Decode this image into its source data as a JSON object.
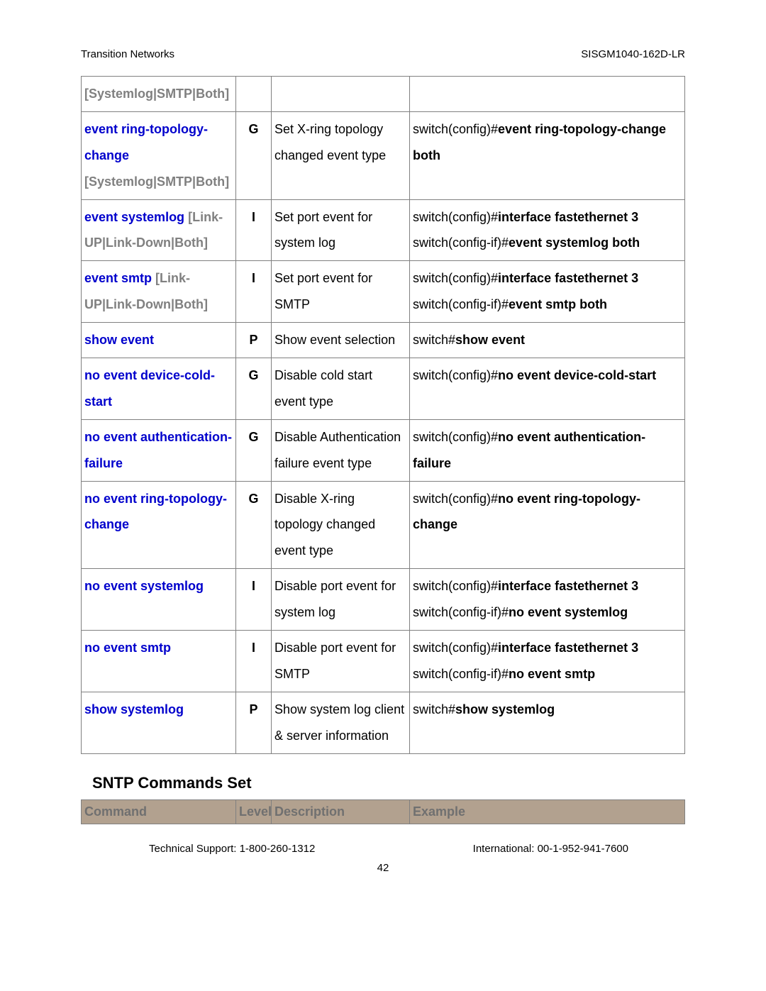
{
  "header": {
    "left": "Transition Networks",
    "right": "SISGM1040-162D-LR"
  },
  "table1": {
    "rows": [
      {
        "cmd": "",
        "opt": "[Systemlog|SMTP|Both]",
        "lvl": "",
        "desc": "",
        "ex_parts": []
      },
      {
        "cmd": "event ring-topology-change",
        "opt": "[Systemlog|SMTP|Both]",
        "lvl": "G",
        "desc": "Set X-ring topology changed event type",
        "ex_parts": [
          {
            "t": "switch(config)#",
            "b": false
          },
          {
            "t": "event ring-topology-change both",
            "b": true
          }
        ]
      },
      {
        "cmd": "event systemlog",
        "opt": "[Link-UP|Link-Down|Both]",
        "lvl": "I",
        "desc": "Set port event for system log",
        "ex_parts": [
          {
            "t": "switch(config)#",
            "b": false
          },
          {
            "t": "interface fastethernet 3",
            "b": true
          },
          {
            "t": "\n",
            "b": false
          },
          {
            "t": "switch(config-if)#",
            "b": false
          },
          {
            "t": "event systemlog both",
            "b": true
          }
        ]
      },
      {
        "cmd": "event smtp",
        "opt": "[Link-UP|Link-Down|Both]",
        "lvl": "I",
        "desc": "Set port event for SMTP",
        "ex_parts": [
          {
            "t": "switch(config)#",
            "b": false
          },
          {
            "t": "interface fastethernet 3",
            "b": true
          },
          {
            "t": "\n",
            "b": false
          },
          {
            "t": "switch(config-if)#",
            "b": false
          },
          {
            "t": "event smtp both",
            "b": true
          }
        ]
      },
      {
        "cmd": "show event",
        "opt": "",
        "lvl": "P",
        "desc": "Show event selection",
        "ex_parts": [
          {
            "t": "switch#",
            "b": false
          },
          {
            "t": "show event",
            "b": true
          }
        ]
      },
      {
        "cmd": "no event device-cold-start",
        "opt": "",
        "lvl": "G",
        "desc": "Disable cold start event type",
        "ex_parts": [
          {
            "t": "switch(config)#",
            "b": false
          },
          {
            "t": "no event device-cold-start",
            "b": true
          }
        ]
      },
      {
        "cmd": "no event authentication-failure",
        "opt": "",
        "lvl": "G",
        "desc": "Disable Authentication failure event type",
        "ex_parts": [
          {
            "t": "switch(config)#",
            "b": false
          },
          {
            "t": "no event authentication-failure",
            "b": true
          }
        ]
      },
      {
        "cmd": "no event ring-topology-change",
        "opt": "",
        "lvl": "G",
        "desc": "Disable X-ring topology changed event type",
        "ex_parts": [
          {
            "t": "switch(config)#",
            "b": false
          },
          {
            "t": "no event ring-topology-change",
            "b": true
          }
        ]
      },
      {
        "cmd": "no event systemlog",
        "opt": "",
        "lvl": "I",
        "desc": "Disable port event for system log",
        "ex_parts": [
          {
            "t": "switch(config)#",
            "b": false
          },
          {
            "t": "interface fastethernet 3",
            "b": true
          },
          {
            "t": "\n",
            "b": false
          },
          {
            "t": "switch(config-if)#",
            "b": false
          },
          {
            "t": "no event systemlog",
            "b": true
          }
        ]
      },
      {
        "cmd": "no event smtp",
        "opt": "",
        "lvl": "I",
        "desc": "Disable port event for SMTP",
        "ex_parts": [
          {
            "t": "switch(config)#",
            "b": false
          },
          {
            "t": "interface fastethernet 3",
            "b": true
          },
          {
            "t": "\n",
            "b": false
          },
          {
            "t": "switch(config-if)#",
            "b": false
          },
          {
            "t": "no event smtp",
            "b": true
          }
        ]
      },
      {
        "cmd": "show systemlog",
        "opt": "",
        "lvl": "P",
        "desc": "Show system log client & server information",
        "ex_parts": [
          {
            "t": "switch#",
            "b": false
          },
          {
            "t": "show systemlog",
            "b": true
          }
        ]
      }
    ]
  },
  "section_title": "SNTP Commands Set",
  "table2_headers": {
    "command": "Command",
    "level": "Level",
    "description": "Description",
    "example": "Example"
  },
  "footer": {
    "left": "Technical Support: 1-800-260-1312",
    "right": "International: 00-1-952-941-7600",
    "page": "42"
  },
  "colors": {
    "cmd_blue": "#0000cc",
    "opt_gray": "#808080",
    "header_bg": "#b2a18f",
    "header_fg": "#707070",
    "border": "#808080"
  }
}
